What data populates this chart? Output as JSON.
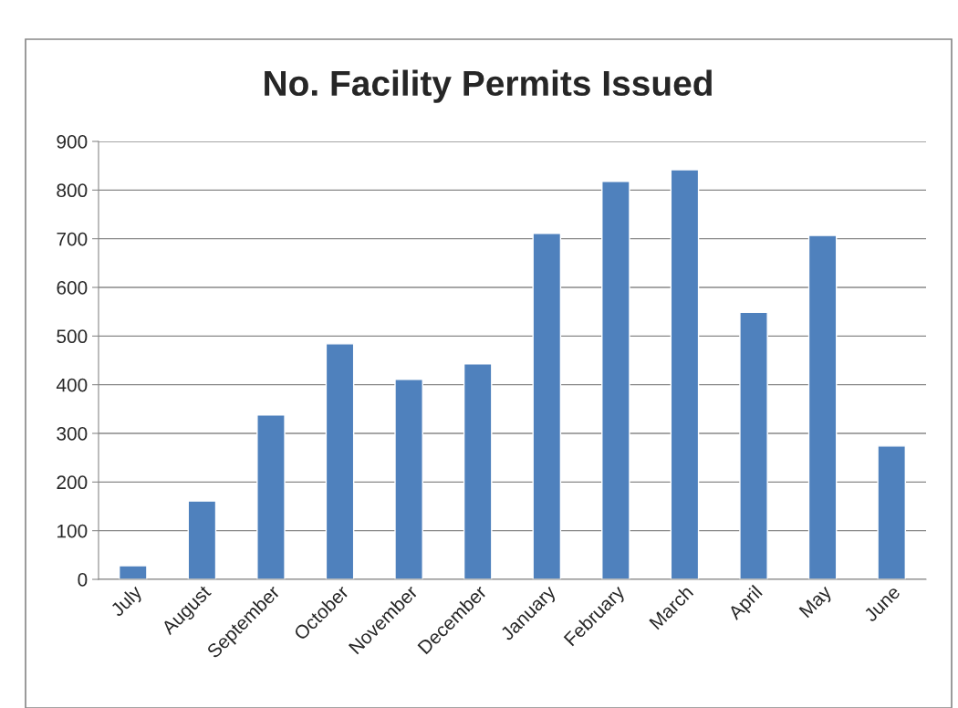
{
  "chart_data": {
    "type": "bar",
    "title": "No. Facility Permits Issued",
    "categories": [
      "July",
      "August",
      "September",
      "October",
      "November",
      "December",
      "January",
      "February",
      "March",
      "April",
      "May",
      "June"
    ],
    "values": [
      28,
      161,
      338,
      484,
      411,
      443,
      711,
      818,
      842,
      549,
      707,
      274
    ],
    "color": "#4f81bd",
    "ylim": [
      0,
      900
    ],
    "yticks": [
      0,
      100,
      200,
      300,
      400,
      500,
      600,
      700,
      800,
      900
    ],
    "grid": "y",
    "legend": false
  }
}
